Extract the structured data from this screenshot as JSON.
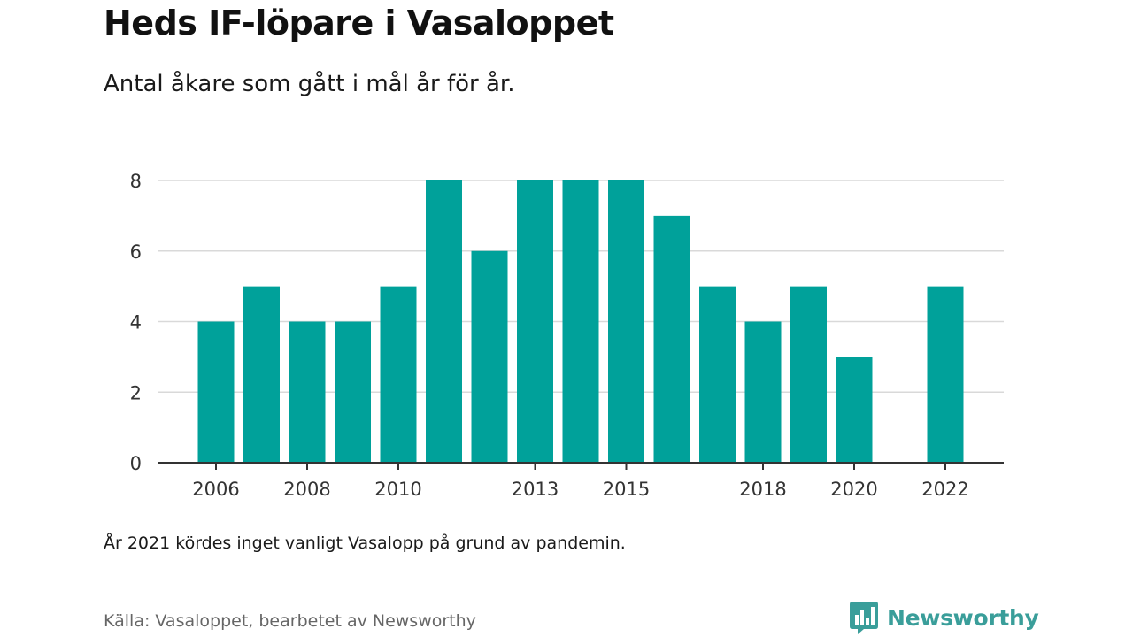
{
  "title": "Heds IF-löpare i Vasaloppet",
  "subtitle": "Antal åkare som gått i mål år för år.",
  "note": "År 2021 kördes inget vanligt Vasalopp på grund av pandemin.",
  "source": "Källa: Vasaloppet, bearbetet av Newsworthy",
  "logo": {
    "text": "Newsworthy",
    "icon": "newsworthy-chart-bubble-icon",
    "color": "#3a9e9a"
  },
  "colors": {
    "bar": "#00a19a",
    "grid": "#d9d9d9",
    "axis": "#333333"
  },
  "chart_data": {
    "type": "bar",
    "title": "Heds IF-löpare i Vasaloppet",
    "subtitle": "Antal åkare som gått i mål år för år.",
    "xlabel": "",
    "ylabel": "",
    "x": [
      2006,
      2007,
      2008,
      2009,
      2010,
      2011,
      2012,
      2013,
      2014,
      2015,
      2016,
      2017,
      2018,
      2019,
      2020,
      2021,
      2022
    ],
    "values": [
      4,
      5,
      4,
      4,
      5,
      8,
      6,
      8,
      8,
      8,
      7,
      5,
      4,
      5,
      3,
      null,
      5
    ],
    "ylim": [
      0,
      8
    ],
    "yticks": [
      0,
      2,
      4,
      6,
      8
    ],
    "xticks": [
      2006,
      2008,
      2010,
      2013,
      2015,
      2018,
      2020,
      2022
    ],
    "grid": "horizontal",
    "legend": "none"
  }
}
